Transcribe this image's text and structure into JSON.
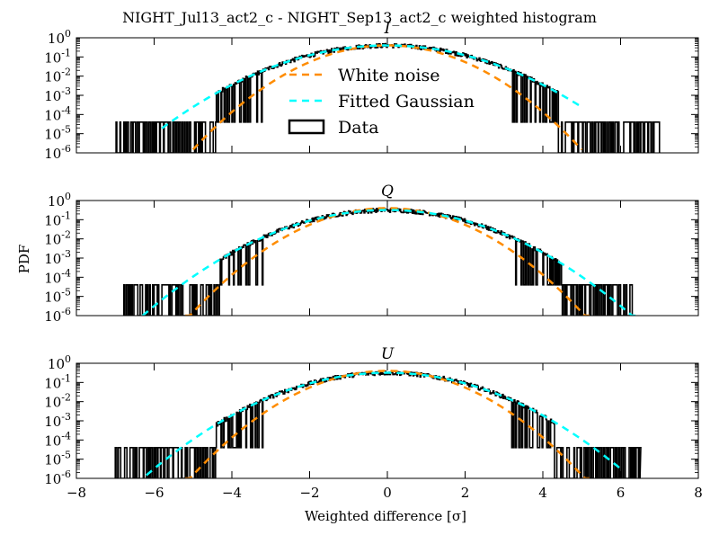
{
  "figure": {
    "title": "NIGHT_Jul13_act2_c - NIGHT_Sep13_act2_c weighted histogram",
    "ylabel": "PDF",
    "xlabel": "Weighted difference [σ]"
  },
  "legend": {
    "items": [
      {
        "label": "White noise",
        "color": "#ff8c00",
        "style": "dashed"
      },
      {
        "label": "Fitted Gaussian",
        "color": "#00ffff",
        "style": "dashed"
      },
      {
        "label": "Data",
        "color": "#000000",
        "style": "box"
      }
    ]
  },
  "colors": {
    "data": "#000000",
    "white_noise": "#ff8c00",
    "gaussian": "#00ffff"
  },
  "chart_data": [
    {
      "type": "line",
      "title": "I",
      "xlim": [
        -8,
        8
      ],
      "ylim": [
        1e-06,
        1
      ],
      "yscale": "log",
      "xticks": [
        -8,
        -6,
        -4,
        -2,
        0,
        2,
        4,
        6,
        8
      ],
      "ytick_labels": [
        "10^0",
        "10^-1",
        "10^-2",
        "10^-3",
        "10^-4",
        "10^-5",
        "10^-6"
      ],
      "legend_position": "center",
      "series": [
        {
          "name": "White noise",
          "color": "#ff8c00",
          "dash": "dashed",
          "function": "gaussian",
          "mu": 0.0,
          "sigma": 1.0,
          "peak": 0.4,
          "x_range": [
            -5.0,
            5.0
          ]
        },
        {
          "name": "Fitted Gaussian",
          "color": "#00ffff",
          "dash": "dashed",
          "function": "gaussian",
          "mu": 0.0,
          "sigma": 1.3,
          "peak": 0.4,
          "x_range": [
            -5.8,
            5.0
          ]
        },
        {
          "name": "Data",
          "color": "#000000",
          "kind": "step",
          "x_range": [
            -7.0,
            7.0
          ],
          "dense_range": [
            -4.4,
            4.4
          ],
          "floor": 4e-05
        }
      ]
    },
    {
      "type": "line",
      "title": "Q",
      "xlim": [
        -8,
        8
      ],
      "ylim": [
        1e-06,
        1
      ],
      "yscale": "log",
      "xticks": [
        -8,
        -6,
        -4,
        -2,
        0,
        2,
        4,
        6,
        8
      ],
      "ytick_labels": [
        "10^0",
        "10^-1",
        "10^-2",
        "10^-3",
        "10^-4",
        "10^-5",
        "10^-6"
      ],
      "series": [
        {
          "name": "White noise",
          "color": "#ff8c00",
          "dash": "dashed",
          "function": "gaussian",
          "mu": 0.0,
          "sigma": 1.0,
          "peak": 0.4,
          "x_range": [
            -5.2,
            5.2
          ]
        },
        {
          "name": "Fitted Gaussian",
          "color": "#00ffff",
          "dash": "dashed",
          "function": "gaussian",
          "mu": 0.0,
          "sigma": 1.25,
          "peak": 0.32,
          "x_range": [
            -6.3,
            6.5
          ]
        },
        {
          "name": "Data",
          "color": "#000000",
          "kind": "step",
          "x_range": [
            -6.8,
            6.3
          ],
          "dense_range": [
            -4.3,
            4.5
          ],
          "floor": 4e-05
        }
      ]
    },
    {
      "type": "line",
      "title": "U",
      "xlim": [
        -8,
        8
      ],
      "ylim": [
        1e-06,
        1
      ],
      "yscale": "log",
      "xticks": [
        -8,
        -6,
        -4,
        -2,
        0,
        2,
        4,
        6,
        8
      ],
      "ytick_labels": [
        "10^0",
        "10^-1",
        "10^-2",
        "10^-3",
        "10^-4",
        "10^-5",
        "10^-6"
      ],
      "series": [
        {
          "name": "White noise",
          "color": "#ff8c00",
          "dash": "dashed",
          "function": "gaussian",
          "mu": 0.0,
          "sigma": 1.0,
          "peak": 0.4,
          "x_range": [
            -5.2,
            5.2
          ]
        },
        {
          "name": "Fitted Gaussian",
          "color": "#00ffff",
          "dash": "dashed",
          "function": "gaussian",
          "mu": 0.0,
          "sigma": 1.25,
          "peak": 0.32,
          "x_range": [
            -6.2,
            6.0
          ]
        },
        {
          "name": "Data",
          "color": "#000000",
          "kind": "step",
          "x_range": [
            -7.0,
            6.5
          ],
          "dense_range": [
            -4.4,
            4.3
          ],
          "floor": 4e-05
        }
      ]
    }
  ]
}
